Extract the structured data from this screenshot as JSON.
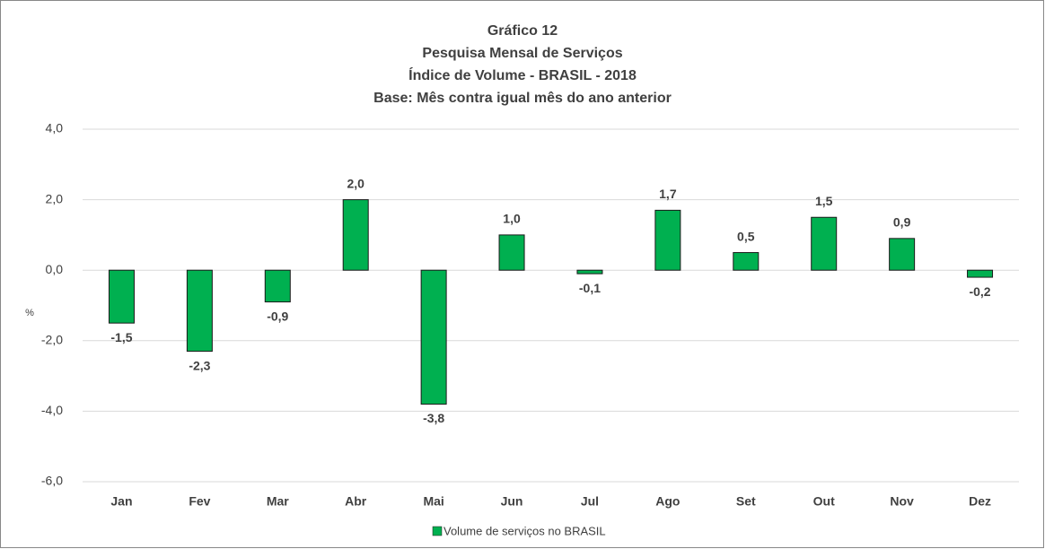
{
  "chart_data": {
    "type": "bar",
    "title": [
      "Gráfico 12",
      "Pesquisa Mensal de Serviços",
      "Índice de Volume - BRASIL - 2018",
      "Base: Mês contra igual mês do ano anterior"
    ],
    "y_label": "%",
    "categories": [
      "Jan",
      "Fev",
      "Mar",
      "Abr",
      "Mai",
      "Jun",
      "Jul",
      "Ago",
      "Set",
      "Out",
      "Nov",
      "Dez"
    ],
    "series": [
      {
        "name": "Volume de serviços no BRASIL",
        "color": "#00b050",
        "values": [
          -1.5,
          -2.3,
          -0.9,
          2.0,
          -3.8,
          1.0,
          -0.1,
          1.7,
          0.5,
          1.5,
          0.9,
          -0.2
        ],
        "value_labels": [
          "-1,5",
          "-2,3",
          "-0,9",
          "2,0",
          "-3,8",
          "1,0",
          "-0,1",
          "1,7",
          "0,5",
          "1,5",
          "0,9",
          "-0,2"
        ]
      }
    ],
    "ylim": [
      -6,
      4
    ],
    "yticks": [
      {
        "value": -6,
        "label": "-6,0"
      },
      {
        "value": -4,
        "label": "-4,0"
      },
      {
        "value": -2,
        "label": "-2,0"
      },
      {
        "value": 0,
        "label": "0,0"
      },
      {
        "value": 2,
        "label": "2,0"
      },
      {
        "value": 4,
        "label": "4,0"
      }
    ],
    "grid": true,
    "legend": "bottom"
  }
}
